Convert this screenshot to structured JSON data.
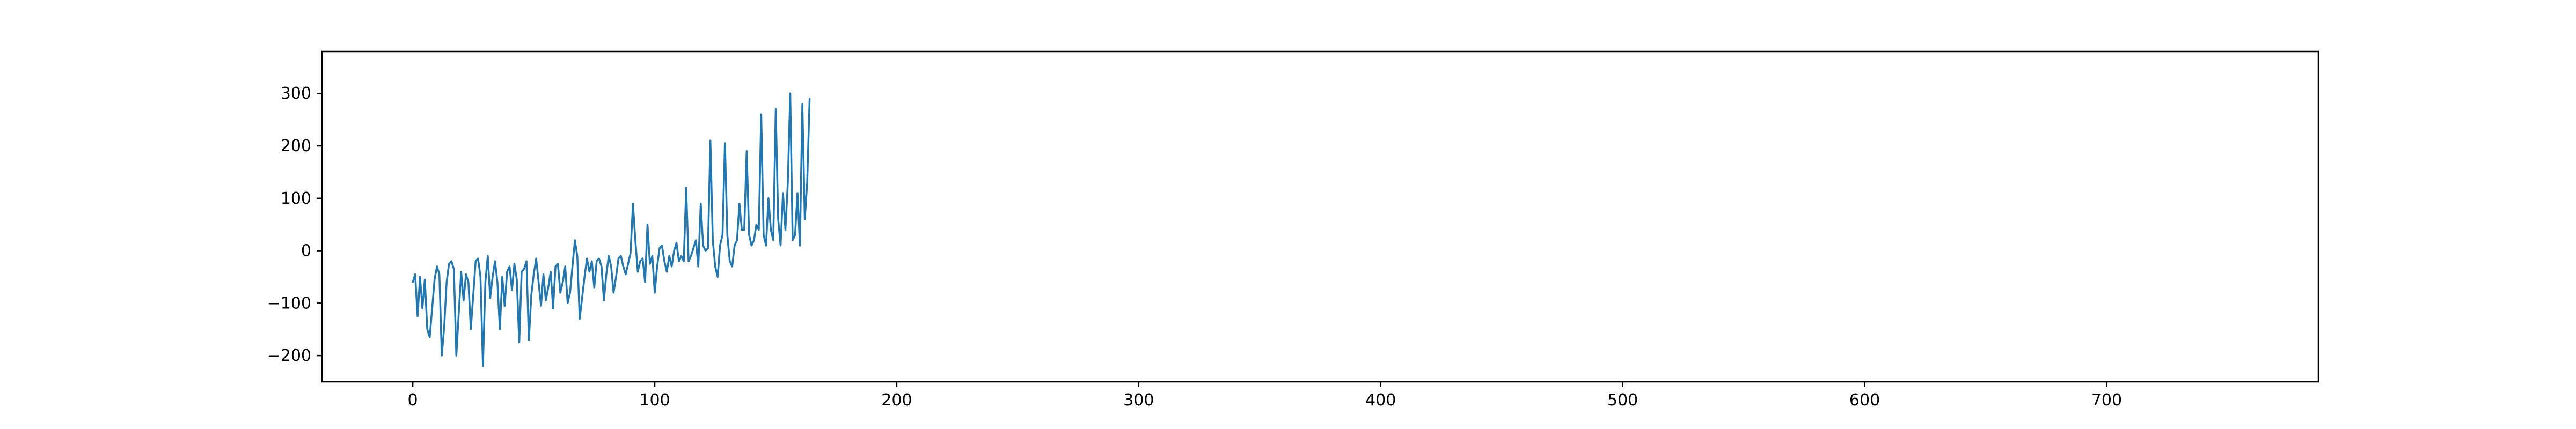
{
  "chart_data": {
    "type": "line",
    "title": "",
    "xlabel": "",
    "ylabel": "",
    "xlim": [
      -37.5,
      787.5
    ],
    "ylim": [
      -250,
      380
    ],
    "xticks": [
      0,
      100,
      200,
      300,
      400,
      500,
      600,
      700
    ],
    "yticks": [
      -200,
      -100,
      0,
      100,
      200,
      300
    ],
    "x_tick_labels": [
      "0",
      "100",
      "200",
      "300",
      "400",
      "500",
      "600",
      "700"
    ],
    "y_tick_labels": [
      "−200",
      "−100",
      "0",
      "100",
      "200",
      "300"
    ],
    "grid": false,
    "legend": "none",
    "series": [
      {
        "color": "#1f77b4",
        "x_start": 0,
        "x_step": 1,
        "values": [
          -60,
          -45,
          -125,
          -50,
          -110,
          -55,
          -150,
          -165,
          -110,
          -55,
          -30,
          -45,
          -200,
          -145,
          -60,
          -25,
          -20,
          -35,
          -200,
          -120,
          -40,
          -95,
          -45,
          -60,
          -150,
          -85,
          -20,
          -15,
          -50,
          -220,
          -60,
          -10,
          -90,
          -50,
          -20,
          -60,
          -150,
          -50,
          -105,
          -40,
          -30,
          -75,
          -25,
          -55,
          -175,
          -40,
          -35,
          -20,
          -170,
          -85,
          -45,
          -15,
          -60,
          -105,
          -45,
          -95,
          -70,
          -40,
          -110,
          -30,
          -25,
          -80,
          -60,
          -30,
          -100,
          -80,
          -30,
          20,
          -10,
          -130,
          -90,
          -50,
          -15,
          -40,
          -20,
          -70,
          -20,
          -15,
          -30,
          -95,
          -45,
          -10,
          -30,
          -80,
          -50,
          -15,
          -10,
          -30,
          -45,
          -25,
          -5,
          90,
          20,
          -40,
          -20,
          -15,
          -60,
          50,
          -25,
          -10,
          -80,
          -30,
          5,
          10,
          -20,
          -40,
          -10,
          -30,
          0,
          15,
          -20,
          -10,
          -20,
          120,
          -20,
          -10,
          5,
          20,
          -30,
          90,
          10,
          0,
          5,
          210,
          20,
          -30,
          -50,
          10,
          30,
          205,
          30,
          -20,
          -30,
          10,
          20,
          90,
          40,
          40,
          190,
          30,
          10,
          20,
          50,
          40,
          260,
          30,
          10,
          100,
          40,
          20,
          270,
          60,
          10,
          110,
          40,
          130,
          300,
          20,
          30,
          110,
          10,
          280,
          60,
          130,
          290
        ]
      }
    ]
  }
}
